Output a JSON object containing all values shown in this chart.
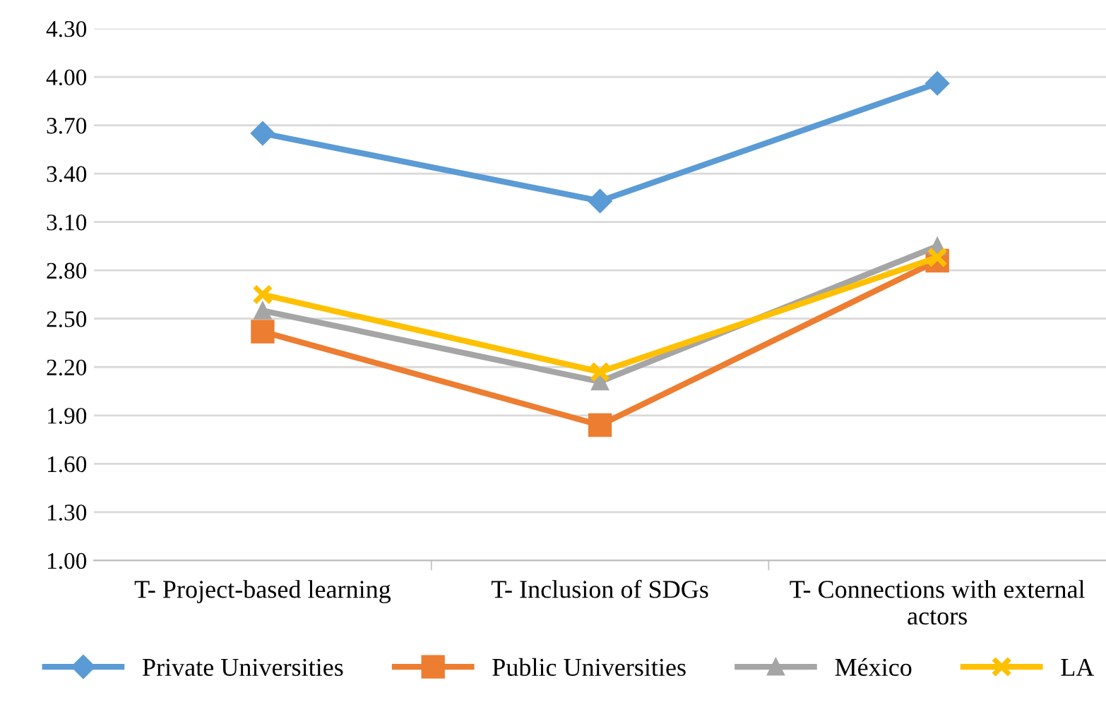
{
  "chart_data": {
    "type": "line",
    "categories": [
      "T- Project-based learning",
      "T- Inclusion of SDGs",
      "T- Connections with external actors"
    ],
    "series": [
      {
        "name": "Private Universities",
        "color": "#5b9bd5",
        "marker": "diamond",
        "values": [
          3.65,
          3.23,
          3.96
        ]
      },
      {
        "name": "Public Universities",
        "color": "#ed7d31",
        "marker": "square",
        "values": [
          2.42,
          1.84,
          2.86
        ]
      },
      {
        "name": "México",
        "color": "#a5a5a5",
        "marker": "triangle",
        "values": [
          2.55,
          2.11,
          2.95
        ]
      },
      {
        "name": "LA",
        "color": "#ffc000",
        "marker": "cross",
        "values": [
          2.65,
          2.17,
          2.88
        ]
      }
    ],
    "ylim": [
      1.0,
      4.3
    ],
    "yticks": [
      {
        "value": 1.0,
        "label": "1.00"
      },
      {
        "value": 1.3,
        "label": "1.30"
      },
      {
        "value": 1.6,
        "label": "1.60"
      },
      {
        "value": 1.9,
        "label": "1.90"
      },
      {
        "value": 2.2,
        "label": "2.20"
      },
      {
        "value": 2.5,
        "label": "2.50"
      },
      {
        "value": 2.8,
        "label": "2.80"
      },
      {
        "value": 3.1,
        "label": "3.10"
      },
      {
        "value": 3.4,
        "label": "3.40"
      },
      {
        "value": 3.7,
        "label": "3.70"
      },
      {
        "value": 4.0,
        "label": "4.00"
      },
      {
        "value": 4.3,
        "label": "4.30"
      }
    ],
    "grid": "y",
    "legend": "bottom"
  }
}
